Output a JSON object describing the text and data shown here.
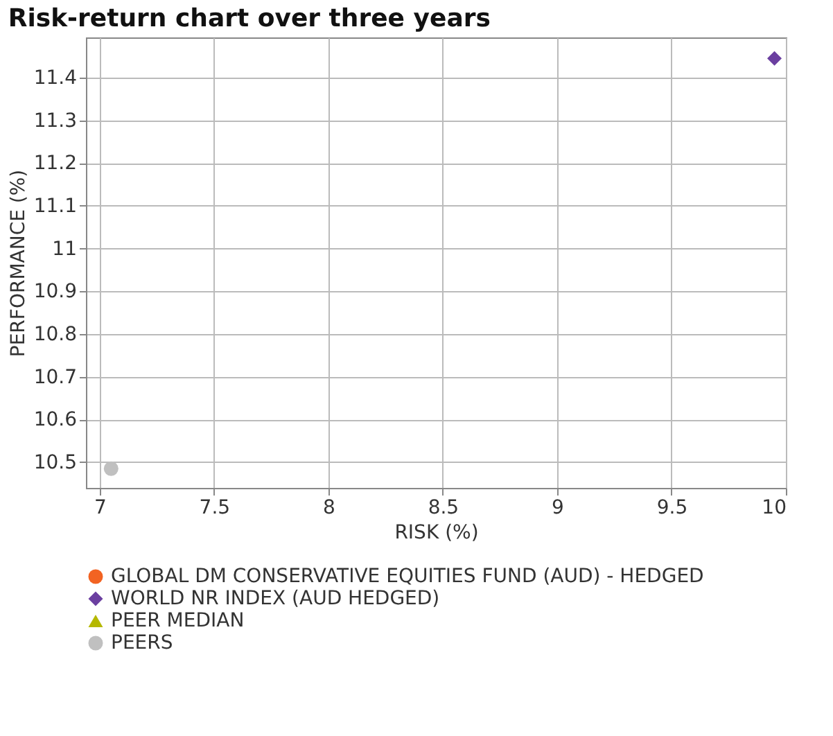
{
  "chart_data": {
    "type": "scatter",
    "title": "Risk-return chart over three years",
    "xlabel": "RISK (%)",
    "ylabel": "PERFORMANCE (%)",
    "xlim": [
      6.94,
      10.0
    ],
    "xticks": [
      7,
      7.5,
      8,
      8.5,
      9,
      9.5,
      10
    ],
    "ylim": [
      10.44,
      11.494
    ],
    "yticks": [
      10.5,
      10.6,
      10.7,
      10.8,
      10.9,
      11,
      11.1,
      11.2,
      11.3,
      11.4
    ],
    "grid": true,
    "legend": "bottom",
    "series": [
      {
        "name": "GLOBAL DM CONSERVATIVE EQUITIES FUND (AUD) - HEDGED",
        "color": "#f26322",
        "marker": "circle",
        "x": [
          null
        ],
        "values": [
          null
        ]
      },
      {
        "name": "WORLD NR INDEX (AUD HEDGED)",
        "color": "#6b3fa0",
        "marker": "diamond",
        "x": [
          9.95
        ],
        "values": [
          11.445
        ]
      },
      {
        "name": "PEER MEDIAN",
        "color": "#b5b800",
        "marker": "triangle",
        "x": [
          null
        ],
        "values": [
          null
        ]
      },
      {
        "name": "PEERS",
        "color": "#c0c0c0",
        "marker": "circle",
        "x": [
          7.05
        ],
        "values": [
          10.485
        ]
      }
    ]
  }
}
